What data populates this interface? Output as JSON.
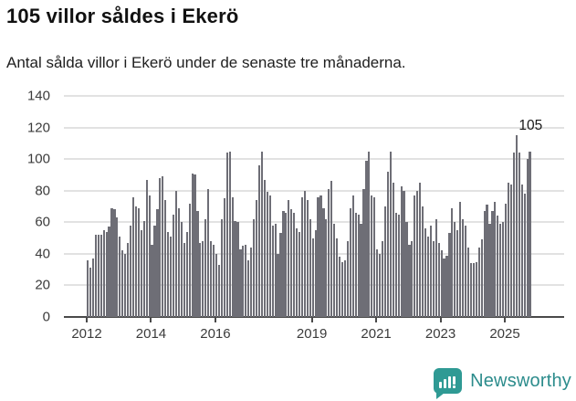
{
  "header": {
    "title": "105 villor såldes i Ekerö",
    "subtitle": "Antal sålda villor i Ekerö under de senaste tre månaderna."
  },
  "chart_data": {
    "type": "bar",
    "title": "105 villor såldes i Ekerö",
    "subtitle": "Antal sålda villor i Ekerö under de senaste tre månaderna.",
    "frequency": "monthly",
    "x_start": "2012-01",
    "x_end": "2025-11",
    "ylim": [
      0,
      140
    ],
    "grid": true,
    "y_ticks": [
      0,
      20,
      40,
      60,
      80,
      100,
      120,
      140
    ],
    "x_ticks": [
      {
        "label": "2012",
        "year": 2012
      },
      {
        "label": "2014",
        "year": 2014
      },
      {
        "label": "2016",
        "year": 2016
      },
      {
        "label": "2019",
        "year": 2019
      },
      {
        "label": "2021",
        "year": 2021
      },
      {
        "label": "2023",
        "year": 2023
      },
      {
        "label": "2025",
        "year": 2025
      }
    ],
    "values": [
      36,
      31,
      37,
      52,
      52,
      52,
      55,
      54,
      57,
      69,
      68,
      63,
      51,
      42,
      40,
      47,
      58,
      76,
      70,
      69,
      55,
      61,
      87,
      77,
      46,
      58,
      68,
      88,
      89,
      74,
      54,
      51,
      65,
      80,
      69,
      60,
      47,
      54,
      72,
      91,
      90,
      67,
      47,
      48,
      62,
      81,
      48,
      46,
      40,
      33,
      62,
      75,
      104,
      105,
      76,
      61,
      60,
      43,
      45,
      46,
      36,
      44,
      62,
      74,
      96,
      105,
      87,
      79,
      77,
      58,
      59,
      40,
      53,
      67,
      66,
      74,
      68,
      66,
      56,
      54,
      76,
      80,
      74,
      62,
      50,
      55,
      76,
      77,
      69,
      62,
      81,
      86,
      59,
      50,
      38,
      35,
      36,
      48,
      69,
      77,
      66,
      65,
      59,
      81,
      99,
      105,
      77,
      76,
      43,
      40,
      48,
      70,
      92,
      105,
      85,
      66,
      65,
      83,
      80,
      60,
      46,
      48,
      77,
      80,
      85,
      70,
      56,
      51,
      58,
      48,
      62,
      47,
      42,
      37,
      39,
      53,
      69,
      60,
      55,
      73,
      62,
      58,
      44,
      34,
      34,
      35,
      44,
      49,
      67,
      71,
      59,
      67,
      73,
      64,
      59,
      60,
      72,
      85,
      84,
      104,
      115,
      104,
      84,
      78,
      100,
      105
    ],
    "highlight_index": 166,
    "highlight_value": 105,
    "annotation": {
      "text": "105"
    },
    "colors": {
      "bar": "#6e6e76",
      "highlight": "#0f9b9e",
      "grid": "#e2e2e2",
      "axis": "#4a4a4a"
    }
  },
  "footer": {
    "brand": "Newsworthy"
  }
}
